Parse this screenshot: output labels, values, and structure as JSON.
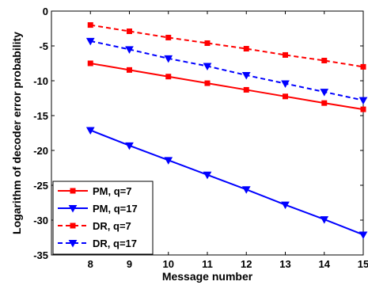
{
  "chart_data": {
    "type": "line",
    "title": "",
    "xlabel": "Message number",
    "ylabel": "Logarithm of decoder error probability",
    "xlim": [
      7,
      15
    ],
    "ylim": [
      -35,
      0
    ],
    "xticks": [
      8,
      9,
      10,
      11,
      12,
      13,
      14,
      15
    ],
    "yticks": [
      0,
      -5,
      -10,
      -15,
      -20,
      -25,
      -30,
      -35
    ],
    "grid": false,
    "legend_position": "bottom-left",
    "x": [
      8,
      9,
      10,
      11,
      12,
      13,
      14,
      15
    ],
    "series": [
      {
        "name": "PM, q=7",
        "color": "#ff0000",
        "line_style": "solid",
        "marker": "square",
        "values": [
          -7.5,
          -8.45,
          -9.4,
          -10.35,
          -11.3,
          -12.25,
          -13.2,
          -14.1
        ]
      },
      {
        "name": "PM, q=17",
        "color": "#0000ff",
        "line_style": "solid",
        "marker": "triangle-down",
        "values": [
          -17.1,
          -19.3,
          -21.4,
          -23.5,
          -25.6,
          -27.8,
          -29.9,
          -32.1
        ]
      },
      {
        "name": "DR, q=7",
        "color": "#ff0000",
        "line_style": "dashed",
        "marker": "square",
        "values": [
          -2.0,
          -2.9,
          -3.8,
          -4.6,
          -5.4,
          -6.3,
          -7.1,
          -8.0
        ]
      },
      {
        "name": "DR, q=17",
        "color": "#0000ff",
        "line_style": "dashed",
        "marker": "triangle-down",
        "values": [
          -4.3,
          -5.5,
          -6.8,
          -7.9,
          -9.2,
          -10.4,
          -11.6,
          -12.8
        ]
      }
    ]
  }
}
